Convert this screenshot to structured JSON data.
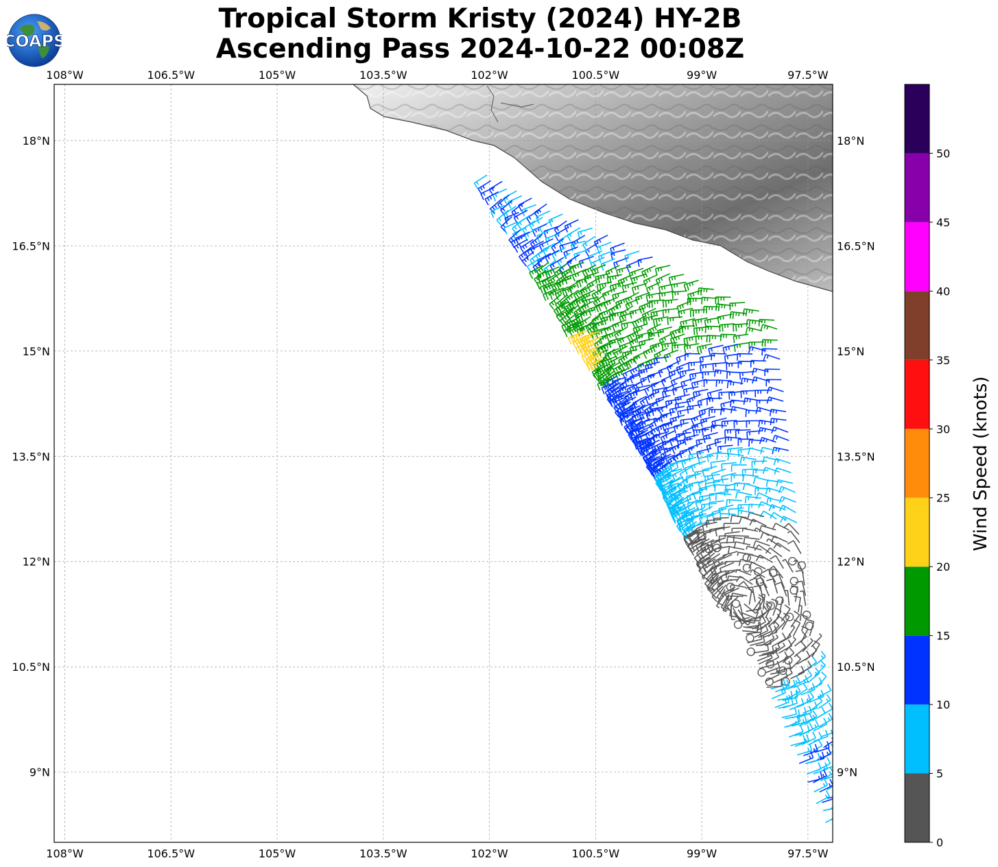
{
  "header": {
    "title_line1": "Tropical Storm Kristy (2024) HY-2B",
    "title_line2": "Ascending Pass 2024-10-22 00:08Z",
    "logo_text": "COAPS"
  },
  "map": {
    "lon_range": [
      -108.15,
      -97.15
    ],
    "lat_range": [
      8.0,
      18.8
    ],
    "lon_ticks": [
      {
        "value": -108.0,
        "label": "108°W"
      },
      {
        "value": -106.5,
        "label": "106.5°W"
      },
      {
        "value": -105.0,
        "label": "105°W"
      },
      {
        "value": -103.5,
        "label": "103.5°W"
      },
      {
        "value": -102.0,
        "label": "102°W"
      },
      {
        "value": -100.5,
        "label": "100.5°W"
      },
      {
        "value": -99.0,
        "label": "99°W"
      },
      {
        "value": -97.5,
        "label": "97.5°W"
      }
    ],
    "lat_ticks": [
      {
        "value": 18.0,
        "label": "18°N"
      },
      {
        "value": 16.5,
        "label": "16.5°N"
      },
      {
        "value": 15.0,
        "label": "15°N"
      },
      {
        "value": 13.5,
        "label": "13.5°N"
      },
      {
        "value": 12.0,
        "label": "12°N"
      },
      {
        "value": 10.5,
        "label": "10.5°N"
      },
      {
        "value": 9.0,
        "label": "9°N"
      }
    ],
    "grid": true,
    "land_shading": "grayscale terrain",
    "coastline_color": "#444444"
  },
  "colorbar": {
    "label": "Wind Speed (knots)",
    "ticks": [
      "0",
      "5",
      "10",
      "15",
      "20",
      "25",
      "30",
      "35",
      "40",
      "45",
      "50"
    ],
    "bins": [
      {
        "min": 0,
        "max": 5,
        "color": "#555555"
      },
      {
        "min": 5,
        "max": 10,
        "color": "#00bfff"
      },
      {
        "min": 10,
        "max": 15,
        "color": "#0033ff"
      },
      {
        "min": 15,
        "max": 20,
        "color": "#009900"
      },
      {
        "min": 20,
        "max": 25,
        "color": "#ffd21a"
      },
      {
        "min": 25,
        "max": 30,
        "color": "#ff8c0a"
      },
      {
        "min": 30,
        "max": 35,
        "color": "#ff0f0f"
      },
      {
        "min": 35,
        "max": 40,
        "color": "#7f3f2a"
      },
      {
        "min": 40,
        "max": 45,
        "color": "#ff00ff"
      },
      {
        "min": 45,
        "max": 50,
        "color": "#8800aa"
      },
      {
        "min": 50,
        "max": 55,
        "color": "#2a005a"
      }
    ]
  }
}
